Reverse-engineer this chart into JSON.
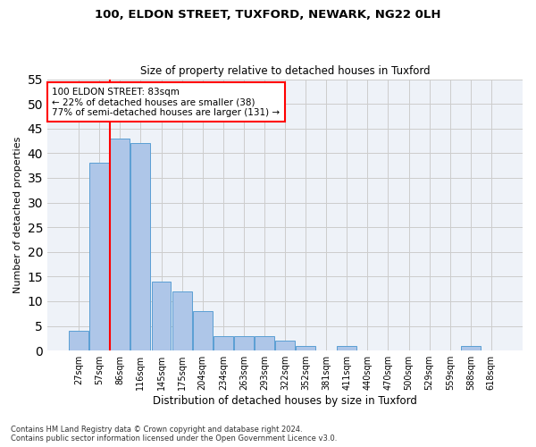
{
  "title1": "100, ELDON STREET, TUXFORD, NEWARK, NG22 0LH",
  "title2": "Size of property relative to detached houses in Tuxford",
  "xlabel": "Distribution of detached houses by size in Tuxford",
  "ylabel": "Number of detached properties",
  "categories": [
    "27sqm",
    "57sqm",
    "86sqm",
    "116sqm",
    "145sqm",
    "175sqm",
    "204sqm",
    "234sqm",
    "263sqm",
    "293sqm",
    "322sqm",
    "352sqm",
    "381sqm",
    "411sqm",
    "440sqm",
    "470sqm",
    "500sqm",
    "529sqm",
    "559sqm",
    "588sqm",
    "618sqm"
  ],
  "values": [
    4,
    38,
    43,
    42,
    14,
    12,
    8,
    3,
    3,
    3,
    2,
    1,
    0,
    1,
    0,
    0,
    0,
    0,
    0,
    1,
    0
  ],
  "bar_color": "#aec6e8",
  "bar_edge_color": "#5a9fd4",
  "grid_color": "#cccccc",
  "bg_color": "#eef2f8",
  "vline_color": "red",
  "annotation_text": "100 ELDON STREET: 83sqm\n← 22% of detached houses are smaller (38)\n77% of semi-detached houses are larger (131) →",
  "annotation_box_color": "white",
  "annotation_border_color": "red",
  "footnote1": "Contains HM Land Registry data © Crown copyright and database right 2024.",
  "footnote2": "Contains public sector information licensed under the Open Government Licence v3.0.",
  "ylim": [
    0,
    55
  ],
  "yticks": [
    0,
    5,
    10,
    15,
    20,
    25,
    30,
    35,
    40,
    45,
    50,
    55
  ]
}
